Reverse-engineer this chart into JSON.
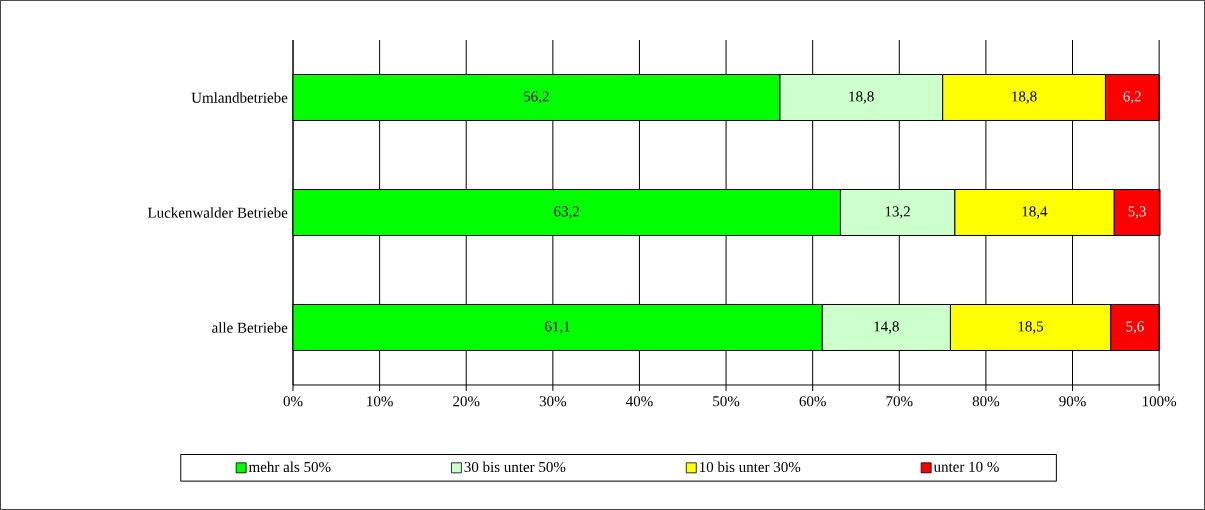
{
  "chart_data": {
    "type": "bar",
    "orientation": "horizontal",
    "stacked": true,
    "categories": [
      "Umlandbetriebe",
      "Luckenwalder Betriebe",
      "alle Betriebe"
    ],
    "series": [
      {
        "name": "mehr als 50%",
        "color": "#00ff00",
        "values": [
          56.2,
          63.2,
          61.1
        ],
        "value_labels": [
          "56,2",
          "63,2",
          "61,1"
        ]
      },
      {
        "name": "30 bis unter 50%",
        "color": "#ccffcc",
        "values": [
          18.8,
          13.2,
          14.8
        ],
        "value_labels": [
          "18,8",
          "13,2",
          "14,8"
        ]
      },
      {
        "name": "10 bis unter 30%",
        "color": "#ffff00",
        "values": [
          18.8,
          18.4,
          18.5
        ],
        "value_labels": [
          "18,8",
          "18,4",
          "18,5"
        ]
      },
      {
        "name": "unter 10 %",
        "color": "#ff0000",
        "values": [
          6.2,
          5.3,
          5.6
        ],
        "value_labels": [
          "6,2",
          "5,3",
          "5,6"
        ]
      }
    ],
    "xlim": [
      0,
      100.1
    ],
    "xticks": [
      {
        "value": 0,
        "label": "0%"
      },
      {
        "value": 10,
        "label": "10%"
      },
      {
        "value": 20,
        "label": "20%"
      },
      {
        "value": 30,
        "label": "30%"
      },
      {
        "value": 40,
        "label": "40%"
      },
      {
        "value": 50,
        "label": "50%"
      },
      {
        "value": 60,
        "label": "60%"
      },
      {
        "value": 70,
        "label": "70%"
      },
      {
        "value": 80,
        "label": "80%"
      },
      {
        "value": 90,
        "label": "90%"
      },
      {
        "value": 100,
        "label": "100%"
      }
    ],
    "grid": "x",
    "legend": "bottom"
  }
}
